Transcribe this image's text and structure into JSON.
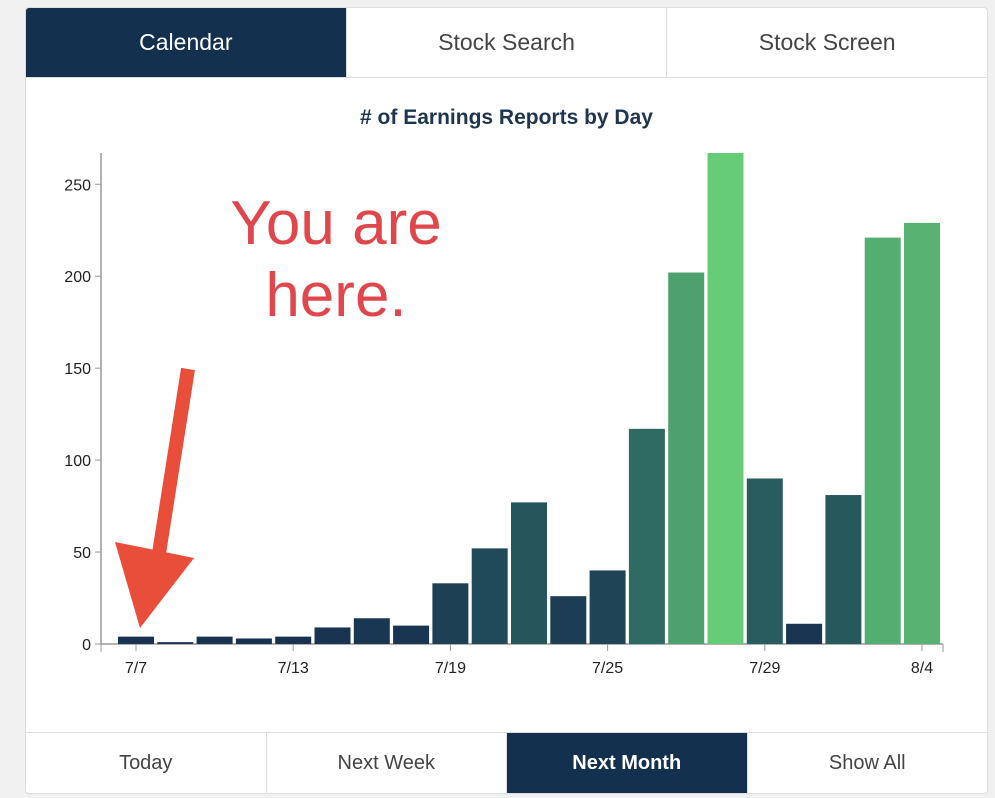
{
  "tabs": [
    {
      "label": "Calendar",
      "active": true
    },
    {
      "label": "Stock Search",
      "active": false
    },
    {
      "label": "Stock Screen",
      "active": false
    }
  ],
  "annotation": {
    "text": "You are here.",
    "line1": "You are",
    "line2": "here.",
    "color": "#e0474c",
    "arrow_color": "#e84e3a"
  },
  "range_buttons": [
    {
      "label": "Today",
      "active": false
    },
    {
      "label": "Next Week",
      "active": false
    },
    {
      "label": "Next Month",
      "active": true
    },
    {
      "label": "Show All",
      "active": false
    }
  ],
  "colors": {
    "low": "#17304f",
    "mid": "#2f6b63",
    "high": "#66cc78"
  },
  "chart_data": {
    "type": "bar",
    "title": "# of Earnings Reports by Day",
    "xlabel": "",
    "ylabel": "",
    "ylim": [
      0,
      267
    ],
    "yticks": [
      0,
      50,
      100,
      150,
      200,
      250
    ],
    "xtick_labels": [
      {
        "index": 0,
        "label": "7/7"
      },
      {
        "index": 4,
        "label": "7/13"
      },
      {
        "index": 8,
        "label": "7/19"
      },
      {
        "index": 12,
        "label": "7/25"
      },
      {
        "index": 16,
        "label": "7/29"
      },
      {
        "index": 20,
        "label": "8/4"
      }
    ],
    "values": [
      4,
      1,
      4,
      3,
      4,
      9,
      14,
      10,
      33,
      52,
      77,
      26,
      40,
      117,
      202,
      267,
      90,
      11,
      81,
      221,
      229
    ],
    "grid": false
  }
}
